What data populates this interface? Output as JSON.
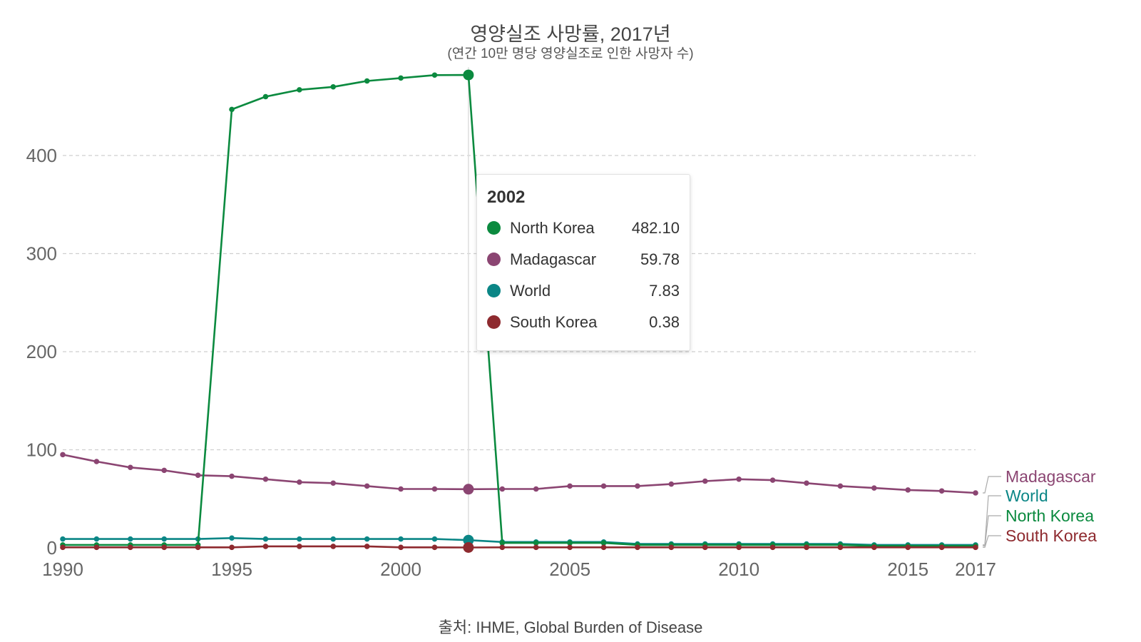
{
  "title": "영양실조 사망률, 2017년",
  "subtitle": "(연간 10만 명당 영양실조로 인한 사망자 수)",
  "source": "출처: IHME, Global Burden of Disease",
  "tooltip": {
    "year": "2002",
    "rows": [
      {
        "name": "North Korea",
        "value": "482.10",
        "color": "#0b8a3f"
      },
      {
        "name": "Madagascar",
        "value": "59.78",
        "color": "#8b4572"
      },
      {
        "name": "World",
        "value": "7.83",
        "color": "#0b8686"
      },
      {
        "name": "South Korea",
        "value": "0.38",
        "color": "#8e2a2f"
      }
    ]
  },
  "chart_data": {
    "type": "line",
    "title": "영양실조 사망률, 2017년",
    "subtitle": "(연간 10만 명당 영양실조로 인한 사망자 수)",
    "xlabel": "",
    "ylabel": "",
    "xlim": [
      1990,
      2017
    ],
    "ylim": [
      0,
      500
    ],
    "x_ticks": [
      1990,
      1995,
      2000,
      2005,
      2010,
      2015,
      2017
    ],
    "y_ticks": [
      0,
      100,
      200,
      300,
      400
    ],
    "grid": "horizontal dashed",
    "legend": "right, labels at line ends",
    "highlight_year": 2002,
    "x": [
      1990,
      1991,
      1992,
      1993,
      1994,
      1995,
      1996,
      1997,
      1998,
      1999,
      2000,
      2001,
      2002,
      2003,
      2004,
      2005,
      2006,
      2007,
      2008,
      2009,
      2010,
      2011,
      2012,
      2013,
      2014,
      2015,
      2016,
      2017
    ],
    "series": [
      {
        "name": "North Korea",
        "color": "#0b8a3f",
        "values": [
          3,
          3,
          3,
          3,
          3,
          447,
          460,
          467,
          470,
          476,
          479,
          482,
          482.1,
          5,
          5,
          5,
          5,
          3,
          3,
          3,
          3,
          3,
          3,
          3,
          2,
          2,
          2,
          2
        ]
      },
      {
        "name": "Madagascar",
        "color": "#8b4572",
        "values": [
          95,
          88,
          82,
          79,
          74,
          73,
          70,
          67,
          66,
          63,
          60,
          60,
          59.78,
          60,
          60,
          63,
          63,
          63,
          65,
          68,
          70,
          69,
          66,
          63,
          61,
          59,
          58,
          56
        ]
      },
      {
        "name": "World",
        "color": "#0b8686",
        "values": [
          9,
          9,
          9,
          9,
          9,
          10,
          9,
          9,
          9,
          9,
          9,
          9,
          7.83,
          6,
          6,
          6,
          6,
          4,
          4,
          4,
          4,
          4,
          4,
          4,
          3,
          3,
          3,
          3
        ]
      },
      {
        "name": "South Korea",
        "color": "#8e2a2f",
        "values": [
          0.5,
          0.5,
          0.5,
          0.5,
          0.5,
          0.5,
          1.5,
          1.5,
          1.5,
          1.5,
          0.5,
          0.5,
          0.38,
          0.5,
          0.5,
          0.5,
          0.5,
          0.5,
          0.5,
          0.5,
          0.5,
          0.5,
          0.5,
          0.5,
          0.5,
          0.5,
          0.5,
          0.5
        ]
      }
    ],
    "end_labels": [
      "Madagascar",
      "World",
      "North Korea",
      "South Korea"
    ]
  }
}
